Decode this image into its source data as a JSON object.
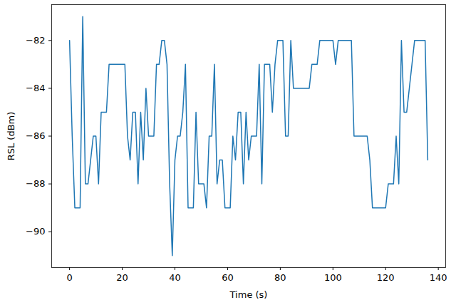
{
  "chart_data": {
    "type": "line",
    "x_label": "Time (s)",
    "y_label": "RSL (dBm)",
    "xlim": [
      -6.8,
      142.8
    ],
    "ylim": [
      -91.5,
      -80.5
    ],
    "xticks": [
      0,
      20,
      40,
      60,
      80,
      100,
      120,
      140
    ],
    "yticks": [
      {
        "value": -90,
        "label": "−90"
      },
      {
        "value": -88,
        "label": "−88"
      },
      {
        "value": -86,
        "label": "−86"
      },
      {
        "value": -84,
        "label": "−84"
      },
      {
        "value": -82,
        "label": "−82"
      }
    ],
    "grid": false,
    "x": [
      0,
      1,
      2,
      3,
      4,
      5,
      6,
      7,
      8,
      9,
      10,
      11,
      12,
      13,
      14,
      15,
      16,
      17,
      18,
      19,
      20,
      21,
      22,
      23,
      24,
      25,
      26,
      27,
      28,
      29,
      30,
      31,
      32,
      33,
      34,
      35,
      36,
      37,
      38,
      39,
      40,
      41,
      42,
      43,
      44,
      45,
      46,
      47,
      48,
      49,
      50,
      51,
      52,
      53,
      54,
      55,
      56,
      57,
      58,
      59,
      60,
      61,
      62,
      63,
      64,
      65,
      66,
      67,
      68,
      69,
      70,
      71,
      72,
      73,
      74,
      75,
      76,
      77,
      78,
      79,
      80,
      81,
      82,
      83,
      84,
      85,
      86,
      87,
      88,
      89,
      90,
      91,
      92,
      93,
      94,
      95,
      96,
      97,
      98,
      99,
      100,
      101,
      102,
      103,
      104,
      105,
      106,
      107,
      108,
      109,
      110,
      111,
      112,
      113,
      114,
      115,
      116,
      117,
      118,
      119,
      120,
      121,
      122,
      123,
      124,
      125,
      126,
      127,
      128,
      129,
      130,
      131,
      132,
      133,
      134,
      135,
      136
    ],
    "series": [
      {
        "color": "#1f77b4",
        "values": [
          -82,
          -86,
          -89,
          -89,
          -89,
          -81,
          -88,
          -88,
          -87,
          -86,
          -86,
          -88,
          -85,
          -85,
          -85,
          -83,
          -83,
          -83,
          -83,
          -83,
          -83,
          -83,
          -86,
          -87,
          -85,
          -85,
          -88,
          -85,
          -87,
          -84,
          -86,
          -86,
          -86,
          -83,
          -83,
          -82,
          -82,
          -83,
          -88,
          -91,
          -87,
          -86,
          -86,
          -85,
          -83,
          -89,
          -89,
          -89,
          -85,
          -88,
          -88,
          -88,
          -89,
          -86,
          -86,
          -83,
          -88,
          -87,
          -87,
          -89,
          -89,
          -89,
          -86,
          -87,
          -85,
          -85,
          -88,
          -85,
          -87,
          -86,
          -86,
          -86,
          -83,
          -88,
          -83,
          -83,
          -83,
          -85,
          -83,
          -82,
          -82,
          -82,
          -86,
          -86,
          -82,
          -84,
          -84,
          -84,
          -84,
          -84,
          -84,
          -84,
          -83,
          -83,
          -83,
          -82,
          -82,
          -82,
          -82,
          -82,
          -82,
          -83,
          -82,
          -82,
          -82,
          -82,
          -82,
          -82,
          -86,
          -86,
          -86,
          -86,
          -86,
          -86,
          -87,
          -89,
          -89,
          -89,
          -89,
          -89,
          -89,
          -88,
          -88,
          -88,
          -86,
          -88,
          -82,
          -85,
          -85,
          -84,
          -83,
          -82,
          -82,
          -82,
          -82,
          -82,
          -87
        ]
      }
    ]
  }
}
